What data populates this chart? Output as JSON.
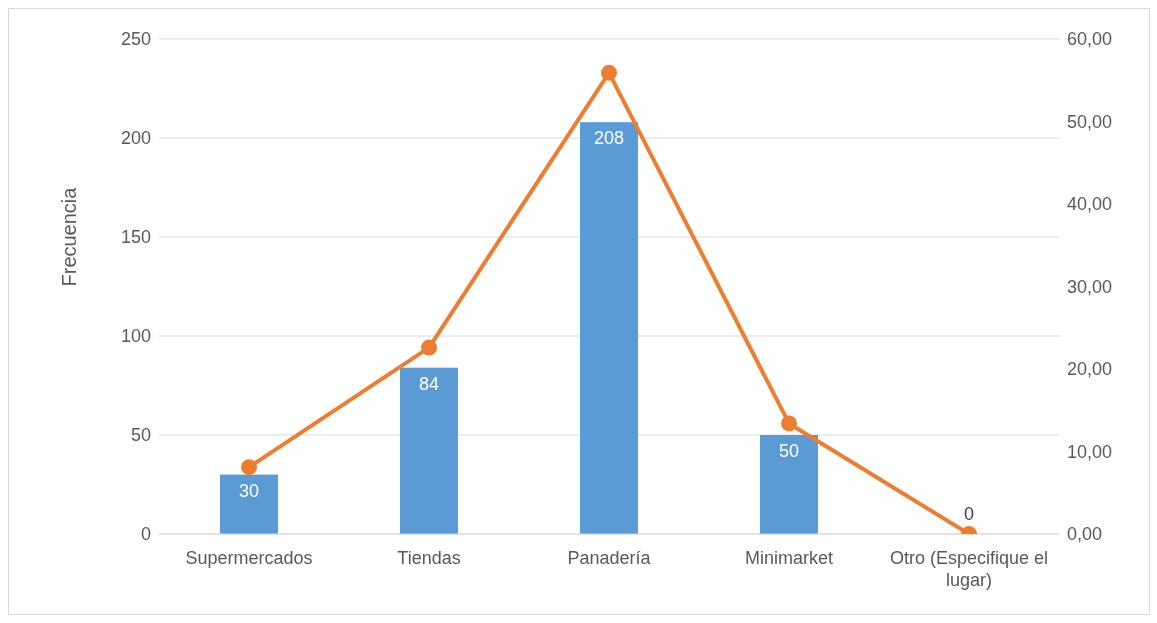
{
  "chart_data": {
    "type": "bar",
    "ylabel": "Frecuencia",
    "categories": [
      "Supermercados",
      "Tiendas",
      "Panadería",
      "Minimarket",
      "Otro (Especifique el lugar)"
    ],
    "series": [
      {
        "color": "#5b9bd5",
        "values": [
          30,
          84,
          208,
          50,
          0
        ],
        "value_labels": [
          "30",
          "84",
          "208",
          "50",
          "0"
        ]
      },
      {
        "type": "line",
        "axis": "y2",
        "color": "#ed7d31",
        "values": [
          8.1,
          22.6,
          55.9,
          13.4,
          0
        ]
      }
    ],
    "ylim": [
      0,
      250
    ],
    "yticks": [
      0,
      50,
      100,
      150,
      200,
      250
    ],
    "y2lim": [
      0,
      60
    ],
    "y2ticks": [
      {
        "value": 0,
        "label": "0,00"
      },
      {
        "value": 10,
        "label": "10,00"
      },
      {
        "value": 20,
        "label": "20,00"
      },
      {
        "value": 30,
        "label": "30,00"
      },
      {
        "value": 40,
        "label": "40,00"
      },
      {
        "value": 50,
        "label": "50,00"
      },
      {
        "value": 60,
        "label": "60,00"
      }
    ],
    "grid": "y",
    "legend": false,
    "marker": "circle",
    "line_style": "solid"
  }
}
